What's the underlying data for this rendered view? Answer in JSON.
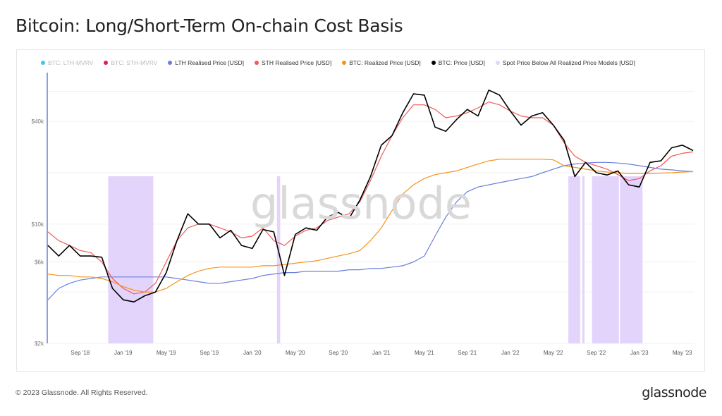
{
  "header": {
    "title": "Bitcoin: Long/Short-Term On-chain Cost Basis"
  },
  "footer": {
    "copyright": "© 2023 Glassnode. All Rights Reserved.",
    "logo": "glassnode"
  },
  "watermark": "glassnode",
  "legend": [
    {
      "label": "BTC: LTH-MVRV",
      "color": "#3cc8f0",
      "hidden": true
    },
    {
      "label": "BTC: STH-MVRV",
      "color": "#e0186c",
      "hidden": true
    },
    {
      "label": "LTH Realised Price [USD]",
      "color": "#6a7fdb",
      "hidden": false
    },
    {
      "label": "STH Realised Price [USD]",
      "color": "#f05a5a",
      "hidden": false
    },
    {
      "label": "BTC: Realized Price [USD]",
      "color": "#f7931a",
      "hidden": false
    },
    {
      "label": "BTC: Price [USD]",
      "color": "#000000",
      "hidden": false
    },
    {
      "label": "Spot Price Below All Realized Price Models [USD]",
      "color": "#e3d4fc",
      "hidden": false
    }
  ],
  "chart_data": {
    "type": "line",
    "title": "Bitcoin: Long/Short-Term On-chain Cost Basis",
    "yscale": "log",
    "ylim": [
      2000,
      80000
    ],
    "y_ticks": [
      {
        "v": 2000,
        "label": "$2k"
      },
      {
        "v": 6000,
        "label": "$6k"
      },
      {
        "v": 10000,
        "label": "$10k"
      },
      {
        "v": 40000,
        "label": "$40k"
      }
    ],
    "x_start": "Jun 2018",
    "x_unit": "months since Jun 2018",
    "xlim": [
      0,
      60
    ],
    "x_ticks": [
      {
        "t": 3,
        "label": "Sep '18"
      },
      {
        "t": 7,
        "label": "Jan '19"
      },
      {
        "t": 11,
        "label": "May '19"
      },
      {
        "t": 15,
        "label": "Sep '19"
      },
      {
        "t": 19,
        "label": "Jan '20"
      },
      {
        "t": 23,
        "label": "May '20"
      },
      {
        "t": 27,
        "label": "Sep '20"
      },
      {
        "t": 31,
        "label": "Jan '21"
      },
      {
        "t": 35,
        "label": "May '21"
      },
      {
        "t": 39,
        "label": "Sep '21"
      },
      {
        "t": 43,
        "label": "Jan '22"
      },
      {
        "t": 47,
        "label": "May '22"
      },
      {
        "t": 51,
        "label": "Sep '22"
      },
      {
        "t": 55,
        "label": "Jan '23"
      },
      {
        "t": 59,
        "label": "May '23"
      }
    ],
    "series": [
      {
        "name": "LTH Realised Price [USD]",
        "color": "#6a7fdb",
        "values": [
          3600,
          4200,
          4500,
          4700,
          4800,
          4900,
          4900,
          4900,
          4900,
          4900,
          4900,
          4900,
          4800,
          4700,
          4600,
          4500,
          4500,
          4600,
          4700,
          4800,
          5000,
          5100,
          5200,
          5200,
          5300,
          5300,
          5300,
          5300,
          5400,
          5400,
          5500,
          5500,
          5600,
          5700,
          6000,
          6500,
          8500,
          11000,
          13500,
          15500,
          16500,
          17000,
          17500,
          18000,
          18500,
          19000,
          20000,
          21000,
          22000,
          22500,
          22800,
          23000,
          23000,
          22800,
          22500,
          22000,
          21500,
          21000,
          20800,
          20500,
          20300
        ]
      },
      {
        "name": "STH Realised Price [USD]",
        "color": "#f05a5a",
        "values": [
          9000,
          8000,
          7500,
          7000,
          6800,
          6000,
          4800,
          4200,
          3900,
          4000,
          4500,
          6000,
          8000,
          9500,
          10000,
          10000,
          9500,
          9000,
          8300,
          8500,
          9500,
          8000,
          7500,
          8500,
          9200,
          9500,
          10500,
          11000,
          11500,
          13500,
          18000,
          25000,
          33000,
          42000,
          50000,
          50000,
          47000,
          42000,
          43000,
          45000,
          48000,
          52000,
          50000,
          46000,
          43000,
          42000,
          42000,
          38000,
          30000,
          25000,
          23000,
          22000,
          21000,
          19500,
          18000,
          18500,
          20500,
          22000,
          25000,
          26000,
          26500
        ]
      },
      {
        "name": "BTC: Realized Price [USD]",
        "color": "#f7931a",
        "values": [
          5100,
          5000,
          5000,
          4900,
          4900,
          4800,
          4600,
          4300,
          4100,
          4000,
          4000,
          4200,
          4600,
          5000,
          5300,
          5500,
          5600,
          5600,
          5600,
          5600,
          5700,
          5700,
          5800,
          5900,
          6000,
          6100,
          6300,
          6500,
          6700,
          7000,
          8000,
          9500,
          12000,
          15000,
          17000,
          18500,
          19500,
          20000,
          20500,
          21500,
          22500,
          23500,
          24000,
          24000,
          24000,
          24000,
          24000,
          23800,
          22000,
          21500,
          21000,
          20500,
          20200,
          20000,
          19800,
          19800,
          19800,
          19900,
          20000,
          20200,
          20300
        ]
      },
      {
        "name": "BTC: Price [USD]",
        "color": "#000000",
        "values": [
          7500,
          6500,
          7500,
          6500,
          6500,
          6400,
          4200,
          3600,
          3500,
          3800,
          4000,
          5200,
          8000,
          11500,
          10000,
          10000,
          8300,
          9200,
          7500,
          7200,
          9300,
          9000,
          5000,
          8700,
          9500,
          9200,
          11000,
          11700,
          10800,
          13800,
          19000,
          29000,
          33000,
          45000,
          58000,
          57000,
          37000,
          35000,
          41000,
          47000,
          43000,
          61000,
          57000,
          46000,
          38000,
          43000,
          45000,
          38000,
          31000,
          19000,
          23000,
          20000,
          19400,
          20500,
          17000,
          16500,
          23000,
          23500,
          28000,
          29000,
          27000
        ]
      }
    ],
    "shaded_periods": {
      "name": "Spot Price Below All Realized Price Models [USD]",
      "color": "#e3d4fc",
      "ranges_months": [
        [
          5.6,
          9.8
        ],
        [
          21.3,
          21.6
        ],
        [
          48.4,
          49.5
        ],
        [
          49.7,
          49.9
        ],
        [
          50.6,
          53.1
        ],
        [
          53.2,
          55.3
        ]
      ]
    }
  }
}
